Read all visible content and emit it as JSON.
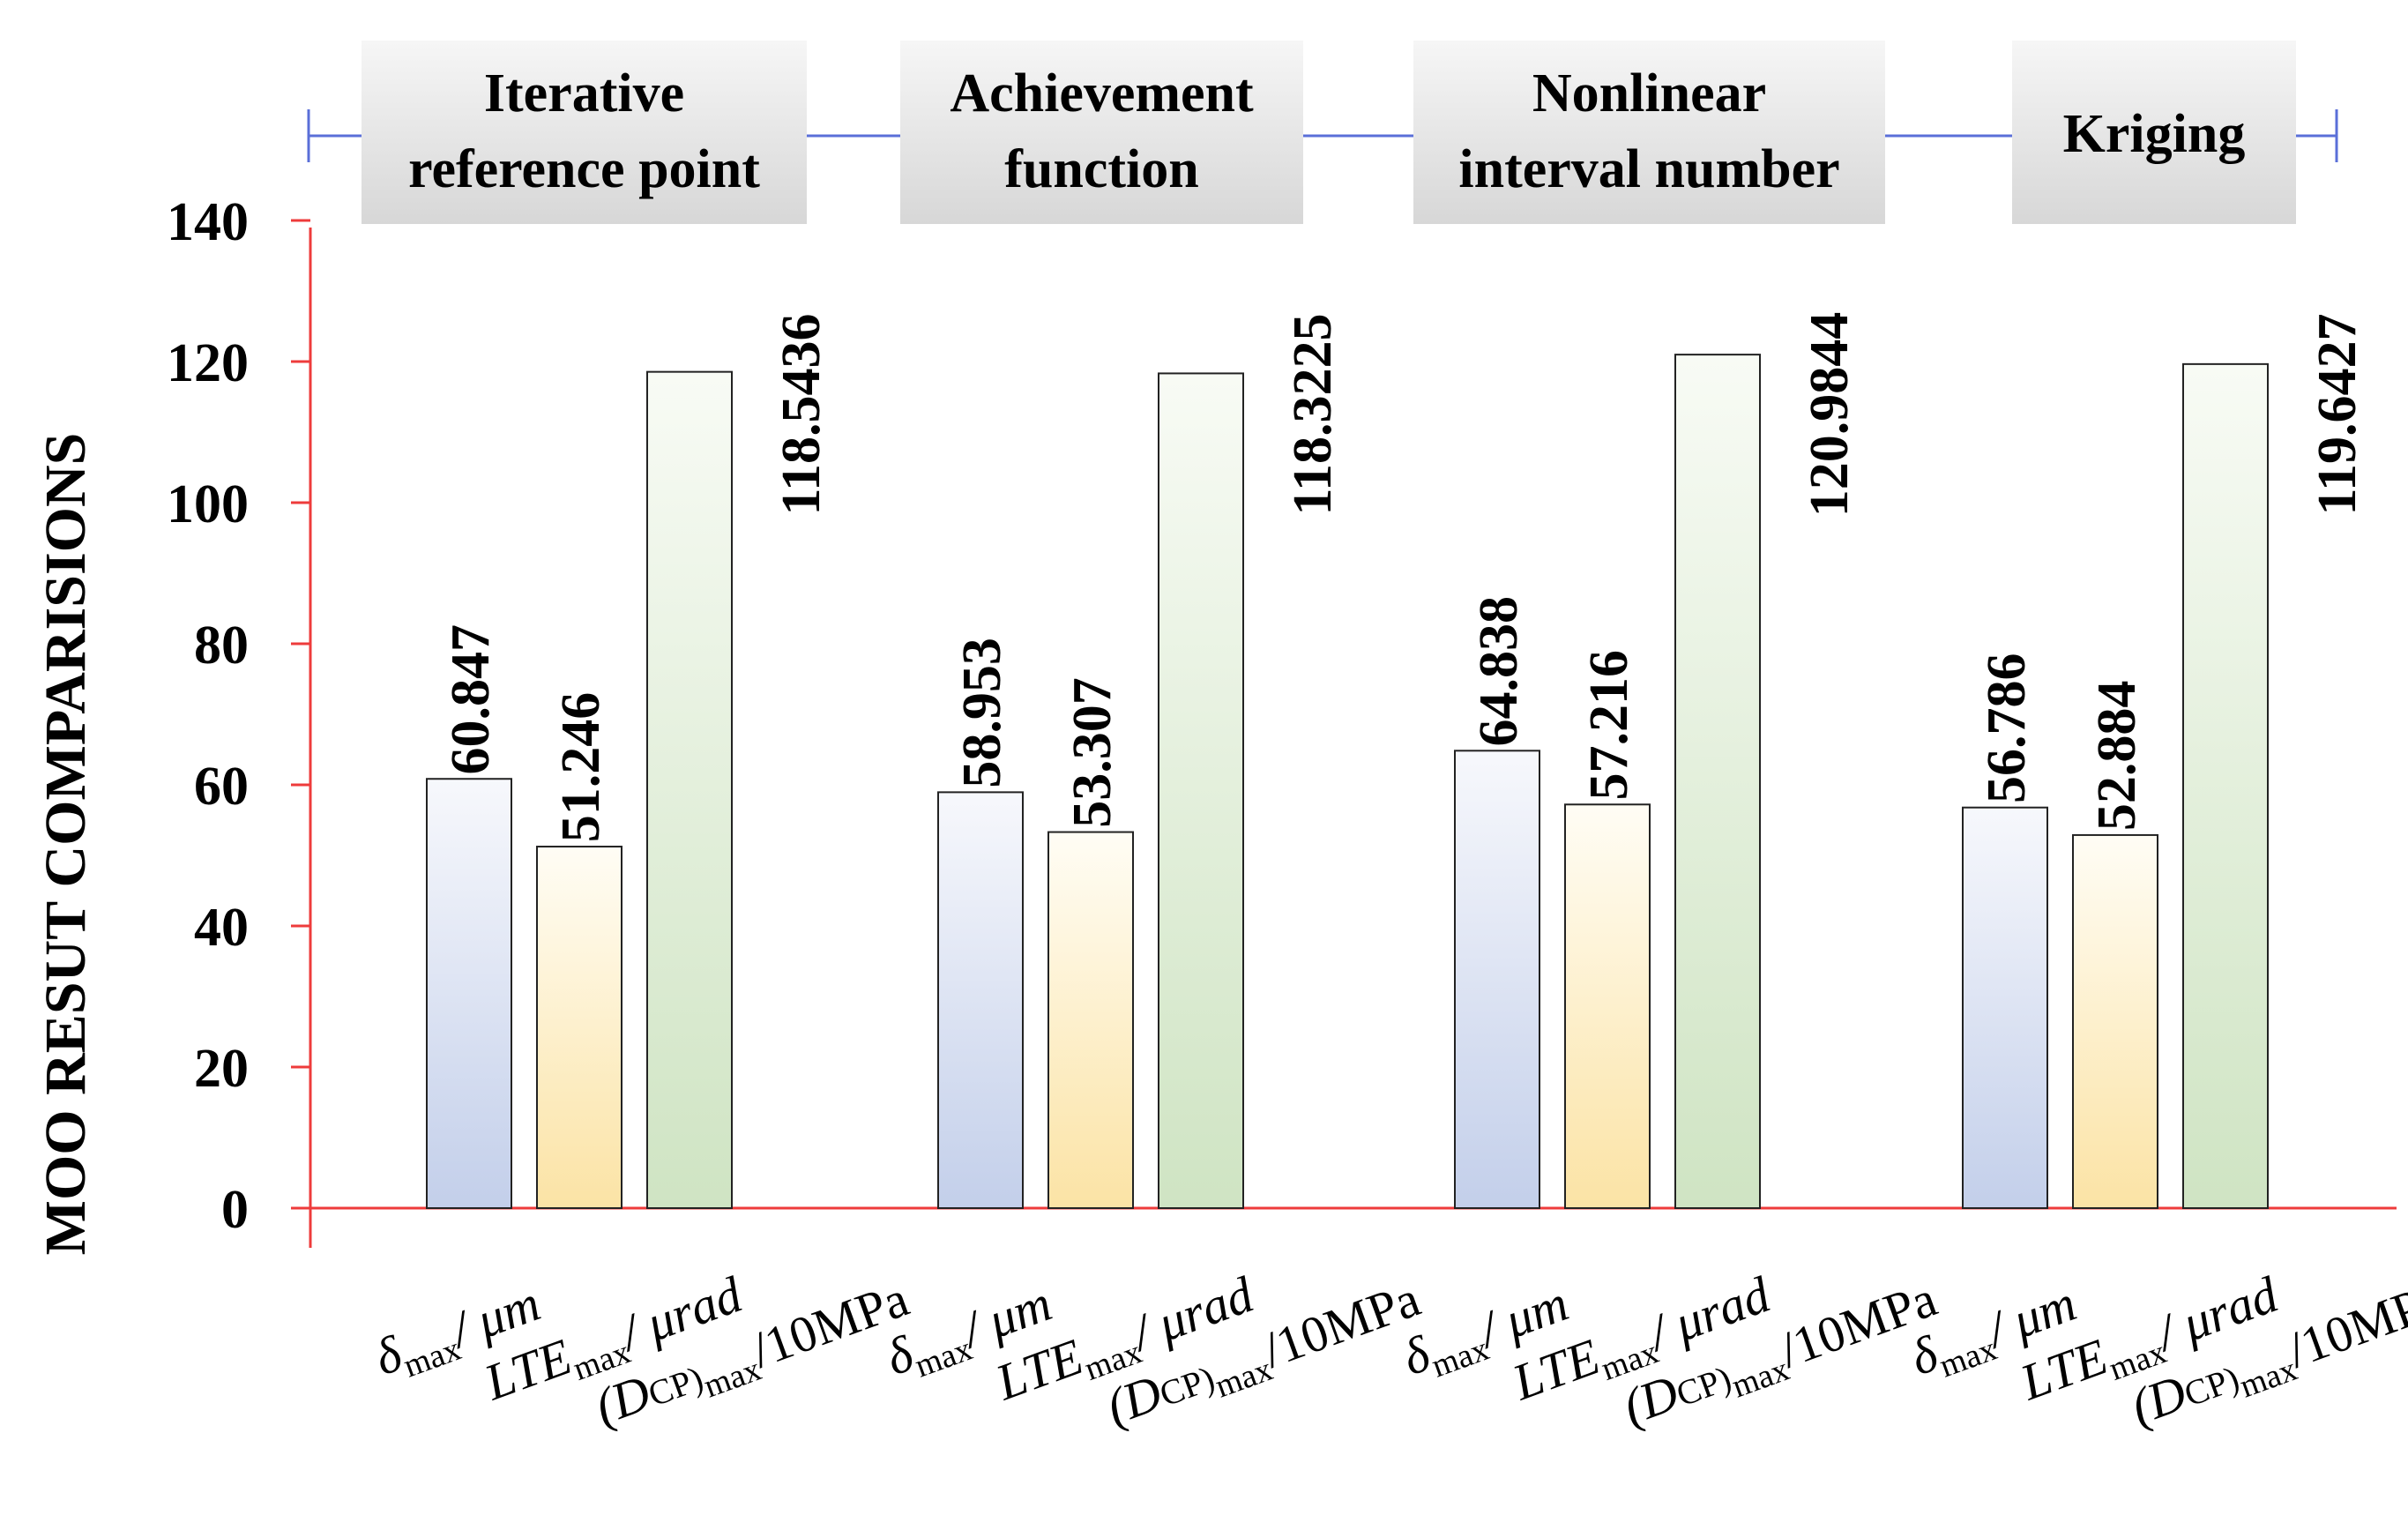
{
  "chart_data": {
    "type": "bar",
    "ylabel": "MOO RESUT COMPARISIONS",
    "ylim": [
      0,
      140
    ],
    "yticks": [
      0,
      20,
      40,
      60,
      80,
      100,
      120,
      140
    ],
    "groups": [
      {
        "title_lines": [
          "Iterative",
          "reference point"
        ],
        "bars": [
          {
            "name": "delta_max",
            "value": 60.847,
            "label": "60.847"
          },
          {
            "name": "LTE_max",
            "value": 51.246,
            "label": "51.246"
          },
          {
            "name": "DCP_max",
            "value": 118.5436,
            "label": "118.5436"
          }
        ]
      },
      {
        "title_lines": [
          "Achievement",
          "function"
        ],
        "bars": [
          {
            "name": "delta_max",
            "value": 58.953,
            "label": "58.953"
          },
          {
            "name": "LTE_max",
            "value": 53.307,
            "label": "53.307"
          },
          {
            "name": "DCP_max",
            "value": 118.3225,
            "label": "118.3225"
          }
        ]
      },
      {
        "title_lines": [
          "Nonlinear",
          "interval number"
        ],
        "bars": [
          {
            "name": "delta_max",
            "value": 64.838,
            "label": "64.838"
          },
          {
            "name": "LTE_max",
            "value": 57.216,
            "label": "57.216"
          },
          {
            "name": "DCP_max",
            "value": 120.9844,
            "label": "120.9844"
          }
        ]
      },
      {
        "title_lines": [
          "Kriging"
        ],
        "bars": [
          {
            "name": "delta_max",
            "value": 56.786,
            "label": "56.786"
          },
          {
            "name": "LTE_max",
            "value": 52.884,
            "label": "52.884"
          },
          {
            "name": "DCP_max",
            "value": 119.6427,
            "label": "119.6427"
          }
        ]
      }
    ],
    "category_labels": [
      {
        "main": "δ",
        "sub": "max",
        "rest": "/ μm"
      },
      {
        "main": "LTE",
        "sub": "max",
        "rest": "/ μrad"
      },
      {
        "pre": "(D",
        "mid": "CP)",
        "sub": "max",
        "rest": "/10MPa"
      }
    ],
    "colors": {
      "axis": "#ee3b3b",
      "bracket": "#5a6fd8",
      "delta_top": "#f7f8fc",
      "delta_bottom": "#c3cfea",
      "lte_top": "#fffdf5",
      "lte_bottom": "#fbe3a5",
      "dcp_top": "#f8fbf5",
      "dcp_bottom": "#cfe4c3",
      "bar_stroke": "#222222",
      "title_box_top": "#f6f6f6",
      "title_box_bottom": "#d7d7d7"
    }
  }
}
